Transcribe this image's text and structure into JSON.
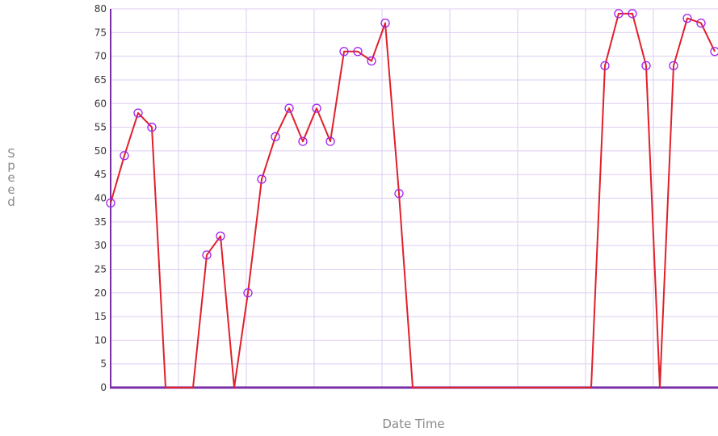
{
  "chart_data": {
    "type": "line",
    "xlabel": "Date Time",
    "ylabel": "Speed",
    "ylim": [
      0,
      80
    ],
    "yticks": [
      0,
      5,
      10,
      15,
      20,
      25,
      30,
      35,
      40,
      45,
      50,
      55,
      60,
      65,
      70,
      75,
      80
    ],
    "grid": true,
    "series": [
      {
        "values": [
          39,
          49,
          58,
          55,
          0,
          0,
          0,
          28,
          32,
          0,
          20,
          44,
          53,
          59,
          52,
          59,
          52,
          71,
          71,
          69,
          77,
          41,
          0,
          0,
          0,
          0,
          0,
          0,
          0,
          0,
          0,
          0,
          0,
          0,
          0,
          0,
          68,
          79,
          79,
          68,
          0,
          68,
          78,
          77,
          71
        ],
        "markers": [
          true,
          true,
          true,
          true,
          false,
          false,
          false,
          true,
          true,
          false,
          true,
          true,
          true,
          true,
          true,
          true,
          true,
          true,
          true,
          true,
          true,
          true,
          false,
          false,
          false,
          false,
          false,
          false,
          false,
          false,
          false,
          false,
          false,
          false,
          false,
          false,
          true,
          true,
          true,
          true,
          false,
          true,
          true,
          true,
          true
        ]
      }
    ],
    "colors": {
      "line": "#e0202a",
      "marker": "#a020f0",
      "grid": "#ddccf2",
      "axis": "#7a2ea8"
    }
  }
}
